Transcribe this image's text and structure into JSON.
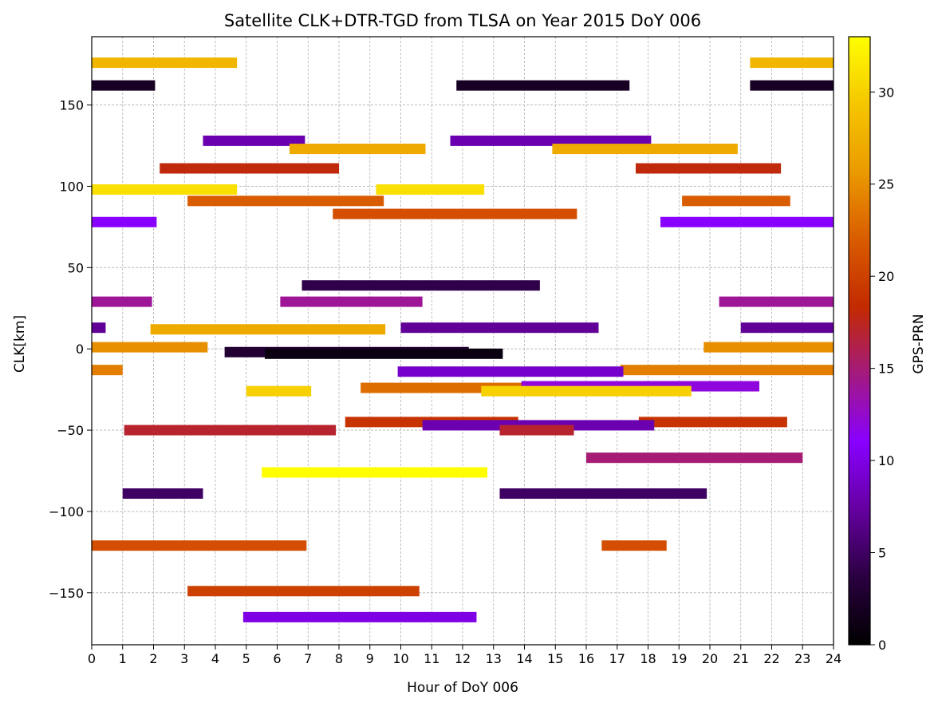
{
  "chart_data": {
    "type": "broken-bar",
    "title": "Satellite CLK+DTR-TGD from TLSA on Year 2015 DoY 006",
    "xlabel": "Hour of DoY 006",
    "ylabel": "CLK[km]",
    "xlim": [
      0,
      24
    ],
    "ylim": [
      -182,
      192
    ],
    "xticks": [
      0,
      1,
      2,
      3,
      4,
      5,
      6,
      7,
      8,
      9,
      10,
      11,
      12,
      13,
      14,
      15,
      16,
      17,
      18,
      19,
      20,
      21,
      22,
      23,
      24
    ],
    "yticks": [
      -150,
      -100,
      -50,
      0,
      50,
      100,
      150
    ],
    "grid": true,
    "colorbar": {
      "label": "GPS-PRN",
      "range": [
        0,
        33
      ],
      "ticks": [
        0,
        5,
        10,
        15,
        20,
        25,
        30
      ],
      "colormap": "gnuplot",
      "colormap_stops": [
        "#000000",
        "#2a0040",
        "#6500a0",
        "#8800ff",
        "#a31a80",
        "#c32a00",
        "#d95c00",
        "#eb9a00",
        "#f5c600",
        "#ffff00"
      ]
    },
    "segments": [
      {
        "prn": 28,
        "y": 176,
        "start": 0.0,
        "end": 4.7
      },
      {
        "prn": 28,
        "y": 176,
        "start": 21.3,
        "end": 24.0
      },
      {
        "prn": 2,
        "y": 162,
        "start": 0.0,
        "end": 2.05
      },
      {
        "prn": 2,
        "y": 162,
        "start": 11.8,
        "end": 17.4
      },
      {
        "prn": 2,
        "y": 162,
        "start": 21.3,
        "end": 24.0
      },
      {
        "prn": 8,
        "y": 128,
        "start": 3.6,
        "end": 6.9
      },
      {
        "prn": 8,
        "y": 128,
        "start": 11.6,
        "end": 18.1
      },
      {
        "prn": 27,
        "y": 123,
        "start": 6.4,
        "end": 10.8
      },
      {
        "prn": 27,
        "y": 123,
        "start": 14.9,
        "end": 20.9
      },
      {
        "prn": 18,
        "y": 111,
        "start": 2.2,
        "end": 8.0
      },
      {
        "prn": 18,
        "y": 111,
        "start": 17.6,
        "end": 22.3
      },
      {
        "prn": 31,
        "y": 98,
        "start": 0.0,
        "end": 4.7
      },
      {
        "prn": 31,
        "y": 98,
        "start": 9.2,
        "end": 12.7
      },
      {
        "prn": 22,
        "y": 91,
        "start": 3.1,
        "end": 9.45
      },
      {
        "prn": 22,
        "y": 91,
        "start": 19.1,
        "end": 22.6
      },
      {
        "prn": 21,
        "y": 83,
        "start": 7.8,
        "end": 15.7
      },
      {
        "prn": 11,
        "y": 78,
        "start": 0.0,
        "end": 2.1
      },
      {
        "prn": 11,
        "y": 78,
        "start": 18.4,
        "end": 24.0
      },
      {
        "prn": 4,
        "y": 39,
        "start": 6.8,
        "end": 14.5
      },
      {
        "prn": 14,
        "y": 29,
        "start": 0.0,
        "end": 1.95
      },
      {
        "prn": 14,
        "y": 29,
        "start": 6.1,
        "end": 10.7
      },
      {
        "prn": 14,
        "y": 29,
        "start": 20.3,
        "end": 24.0
      },
      {
        "prn": 7,
        "y": 13,
        "start": 0.0,
        "end": 0.45
      },
      {
        "prn": 7,
        "y": 13,
        "start": 10.0,
        "end": 16.4
      },
      {
        "prn": 7,
        "y": 13,
        "start": 21.0,
        "end": 24.0
      },
      {
        "prn": 27,
        "y": 12,
        "start": 1.9,
        "end": 9.5
      },
      {
        "prn": 25,
        "y": 1,
        "start": 0.0,
        "end": 3.75
      },
      {
        "prn": 25,
        "y": 1,
        "start": 19.8,
        "end": 24.0
      },
      {
        "prn": 3,
        "y": -2,
        "start": 4.3,
        "end": 12.2
      },
      {
        "prn": 1,
        "y": -3,
        "start": 5.6,
        "end": 13.3
      },
      {
        "prn": 24,
        "y": -13,
        "start": 0.0,
        "end": 1.0
      },
      {
        "prn": 24,
        "y": -13,
        "start": 17.1,
        "end": 24.0
      },
      {
        "prn": 9,
        "y": -14,
        "start": 9.9,
        "end": 17.2
      },
      {
        "prn": 30,
        "y": -26,
        "start": 5.0,
        "end": 7.1
      },
      {
        "prn": 23,
        "y": -24,
        "start": 8.7,
        "end": 15.8
      },
      {
        "prn": 12,
        "y": -23,
        "start": 13.9,
        "end": 21.6
      },
      {
        "prn": 30,
        "y": -26,
        "start": 12.6,
        "end": 19.4
      },
      {
        "prn": 19,
        "y": -45,
        "start": 8.2,
        "end": 13.8
      },
      {
        "prn": 19,
        "y": -45,
        "start": 17.7,
        "end": 22.5
      },
      {
        "prn": 8,
        "y": -47,
        "start": 10.7,
        "end": 18.2
      },
      {
        "prn": 17,
        "y": -50,
        "start": 1.05,
        "end": 7.9
      },
      {
        "prn": 17,
        "y": -50,
        "start": 13.2,
        "end": 15.6
      },
      {
        "prn": 15,
        "y": -67,
        "start": 16.0,
        "end": 23.0
      },
      {
        "prn": 33,
        "y": -76,
        "start": 5.5,
        "end": 12.8
      },
      {
        "prn": 5,
        "y": -89,
        "start": 1.0,
        "end": 3.6
      },
      {
        "prn": 5,
        "y": -89,
        "start": 13.2,
        "end": 19.9
      },
      {
        "prn": 21,
        "y": -121,
        "start": 0.0,
        "end": 6.95
      },
      {
        "prn": 21,
        "y": -121,
        "start": 16.5,
        "end": 18.6
      },
      {
        "prn": 20,
        "y": -149,
        "start": 3.1,
        "end": 10.6
      },
      {
        "prn": 10,
        "y": -165,
        "start": 4.9,
        "end": 12.45
      }
    ]
  }
}
